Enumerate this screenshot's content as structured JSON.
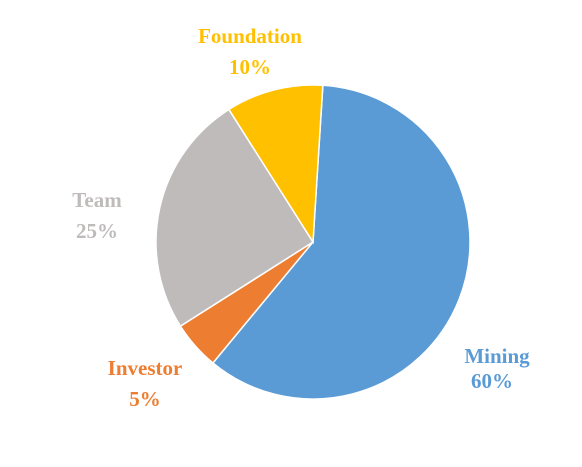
{
  "chart_data": {
    "type": "pie",
    "title": "",
    "slices": [
      {
        "name": "Mining",
        "value": 60,
        "label": "60%",
        "color": "#5b9bd5"
      },
      {
        "name": "Investor",
        "value": 5,
        "label": "5%",
        "color": "#ed7d31"
      },
      {
        "name": "Team",
        "value": 25,
        "label": "25%",
        "color": "#bfbbbb"
      },
      {
        "name": "Foundation",
        "value": 10,
        "label": "10%",
        "color": "#ffc000"
      }
    ],
    "legend": "none"
  }
}
